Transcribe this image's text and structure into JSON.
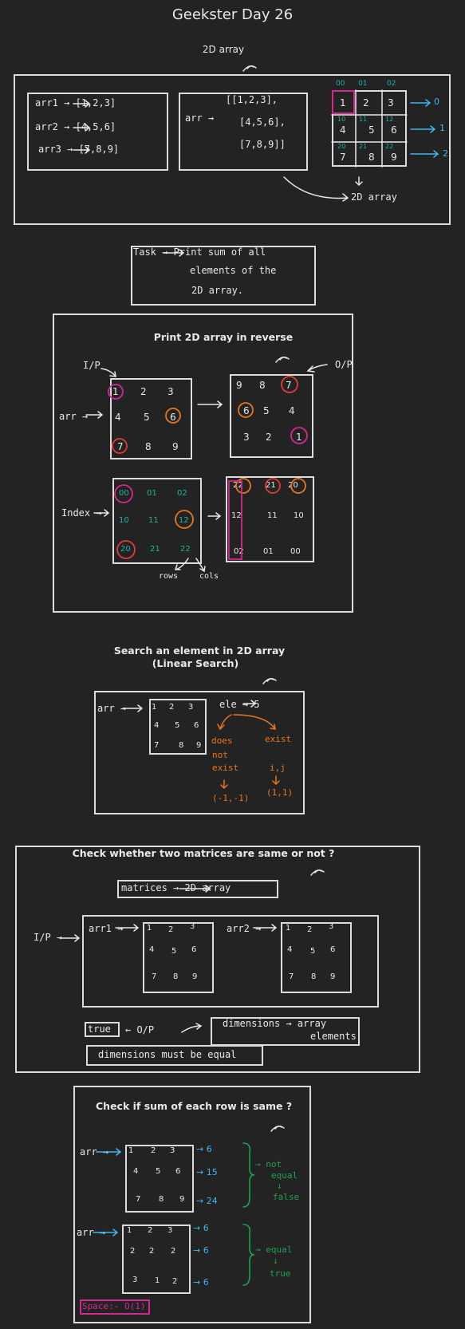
{
  "title": "Geekster Day 26",
  "sec1": {
    "heading": "2D array",
    "arrs": [
      "arr1 → [1,2,3]",
      "arr2 → [4,5,6]",
      "arr3 → [7,8,9]"
    ],
    "arr_label": "arr →",
    "arr_lines": [
      "[[1,2,3],",
      "[4,5,6],",
      "[7,8,9]]"
    ],
    "col_idx": [
      "00",
      "01",
      "02"
    ],
    "grid_vals": [
      "1",
      "2",
      "3",
      "4",
      "5",
      "6",
      "7",
      "8",
      "9"
    ],
    "grid_idx": [
      "10",
      "11",
      "12",
      "20",
      "21",
      "22"
    ],
    "row_idx": [
      "0",
      "1",
      "2"
    ],
    "caption": "2D array"
  },
  "task": {
    "lines": [
      "Task → Print sum of all",
      "elements of the",
      "2D array."
    ]
  },
  "sec2": {
    "heading": "Print 2D array in reverse",
    "ip": "I/P",
    "op": "O/P",
    "arr_label": "arr →",
    "grid_in": [
      "1",
      "2",
      "3",
      "4",
      "5",
      "6",
      "7",
      "8",
      "9"
    ],
    "grid_out": [
      "9",
      "8",
      "7",
      "6",
      "5",
      "4",
      "3",
      "2",
      "1"
    ],
    "index_label": "Index →",
    "idx_in": [
      "00",
      "01",
      "02",
      "10",
      "11",
      "12",
      "20",
      "21",
      "22"
    ],
    "idx_out": [
      "22",
      "21",
      "20",
      "12",
      "11",
      "10",
      "02",
      "01",
      "00"
    ],
    "rows": "rows",
    "cols": "cols"
  },
  "sec3": {
    "heading": "Search an element in 2D array",
    "subheading": "(Linear Search)",
    "arr_label": "arr →",
    "grid": [
      "1",
      "2",
      "3",
      "4",
      "5",
      "6",
      "7",
      "8",
      "9"
    ],
    "ele": "ele → 5",
    "not_exist": [
      "does",
      "not",
      "exist"
    ],
    "not_exist_val": "(-1,-1)",
    "exist": [
      "exist",
      "i,j"
    ],
    "exist_val": "(1,1)"
  },
  "sec4": {
    "heading": "Check whether two matrices are same or not ?",
    "matrices": "matrices → 2D array",
    "ip": "I/P →",
    "arr1": "arr1 →",
    "arr2": "arr2 →",
    "grid": [
      "1",
      "2",
      "3",
      "4",
      "5",
      "6",
      "7",
      "8",
      "9"
    ],
    "true": "true",
    "op": "← O/P",
    "dimensions": "dimensions → array",
    "elements": "elements",
    "must": "dimensions must be equal"
  },
  "sec5": {
    "heading": "Check if sum of each row is same ?",
    "arr_label": "arr →",
    "grid1": [
      "1",
      "2",
      "3",
      "4",
      "5",
      "6",
      "7",
      "8",
      "9"
    ],
    "sums1": [
      "→ 6",
      "→ 15",
      "→ 24"
    ],
    "not_equal": [
      "→ not",
      "equal",
      "↓",
      "false"
    ],
    "grid2": [
      "1",
      "2",
      "3",
      "2",
      "2",
      "2",
      "3",
      "1",
      "2"
    ],
    "sums2": [
      "→ 6",
      "→ 6",
      "→ 6"
    ],
    "equal": [
      "→ equal",
      "↓",
      "true"
    ],
    "space": "Space:- O(1)"
  }
}
